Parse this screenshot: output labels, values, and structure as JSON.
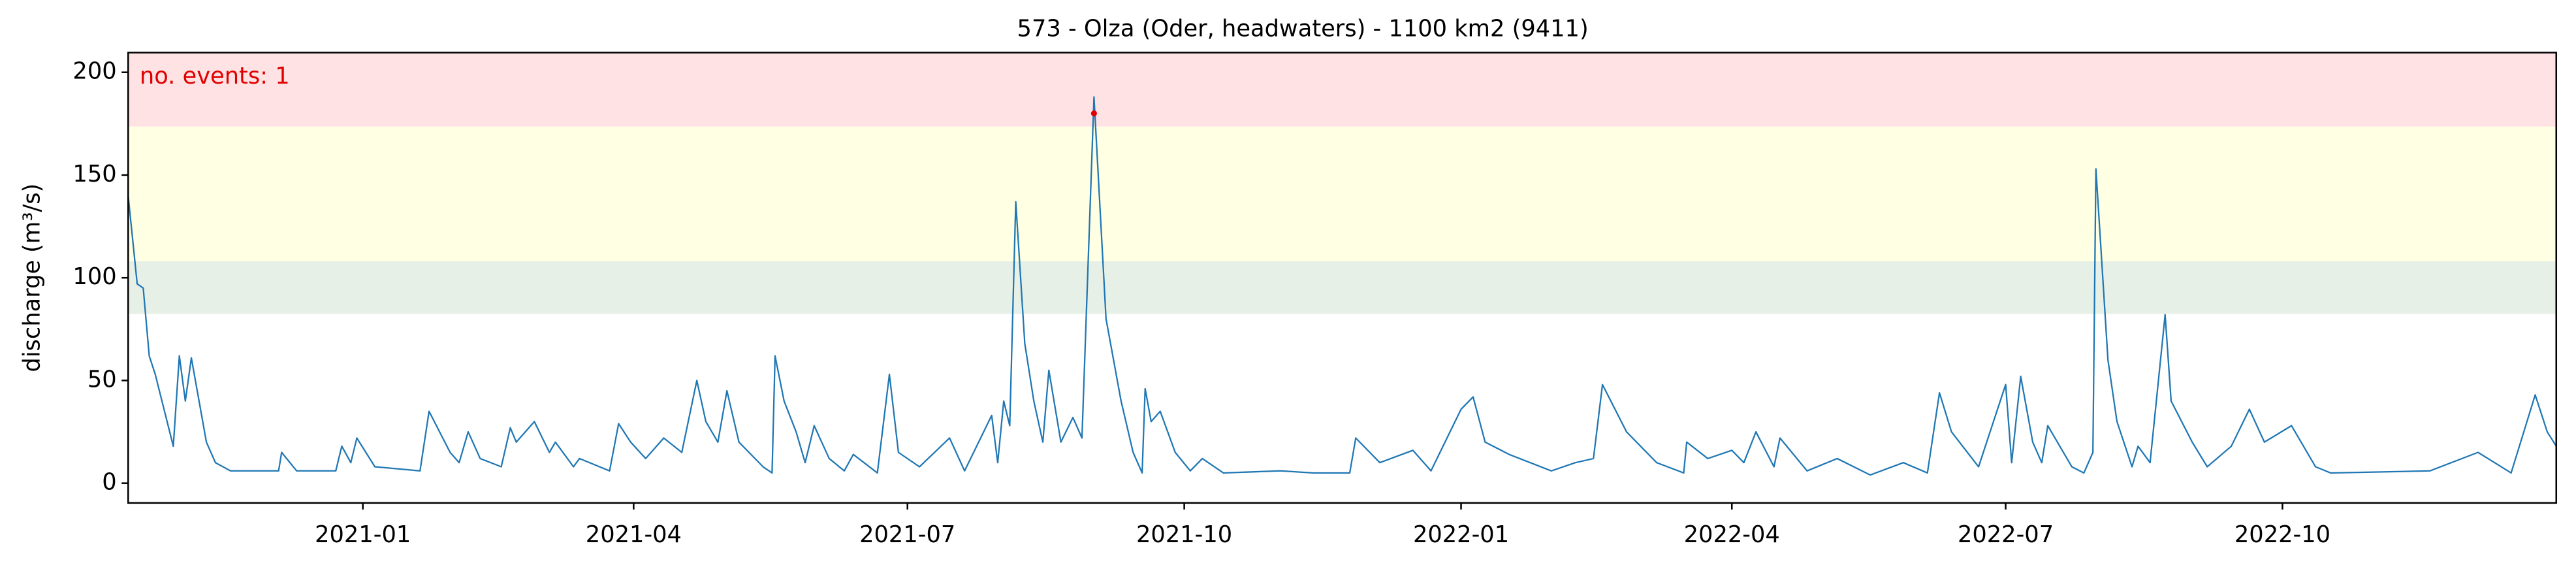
{
  "chart_data": {
    "type": "line",
    "title": "573 - Olza (Oder, headwaters) - 1100 km2 (9411)",
    "ylabel": "discharge (m³/s)",
    "annotation": "no. events: 1",
    "annotation_color": "#e00000",
    "xlim": [
      -78,
      729
    ],
    "xticks": [
      {
        "value": 0,
        "label": "2021-01"
      },
      {
        "value": 90,
        "label": "2021-04"
      },
      {
        "value": 181,
        "label": "2021-07"
      },
      {
        "value": 273,
        "label": "2021-10"
      },
      {
        "value": 365,
        "label": "2022-01"
      },
      {
        "value": 455,
        "label": "2022-04"
      },
      {
        "value": 546,
        "label": "2022-07"
      },
      {
        "value": 638,
        "label": "2022-10"
      }
    ],
    "ylim": [
      -9.6,
      209.6
    ],
    "yticks": [
      0,
      50,
      100,
      150,
      200
    ],
    "bands": [
      {
        "range": [
          82.4,
          108
        ],
        "color": "#e6f0e6"
      },
      {
        "range": [
          108,
          173.6
        ],
        "color": "#ffffe4"
      },
      {
        "range": [
          173.6,
          209.6
        ],
        "color": "#ffe2e4"
      }
    ],
    "series": [
      {
        "color": "#1f77b4",
        "x": [
          -78,
          -75,
          -73,
          -71,
          -69,
          -63,
          -61,
          -59,
          -57,
          -52,
          -49,
          -44,
          -28,
          -27,
          -22,
          -9,
          -7,
          -4,
          -2,
          4,
          19,
          22,
          29,
          32,
          35,
          39,
          46,
          49,
          51,
          57,
          62,
          64,
          70,
          72,
          82,
          85,
          89,
          94,
          100,
          106,
          111,
          114,
          118,
          121,
          125,
          133,
          136,
          137,
          140,
          144,
          147,
          150,
          155,
          160,
          163,
          171,
          175,
          178,
          185,
          195,
          200,
          209,
          211,
          213,
          215,
          217,
          220,
          223,
          226,
          228,
          232,
          236,
          239,
          243,
          247,
          252,
          256,
          259,
          260,
          262,
          265,
          270,
          275,
          279,
          286,
          305,
          316,
          328,
          330,
          338,
          349,
          355,
          358,
          365,
          369,
          373,
          381,
          395,
          403,
          409,
          412,
          420,
          430,
          439,
          440,
          447,
          455,
          459,
          463,
          469,
          471,
          480,
          490,
          501,
          512,
          520,
          524,
          528,
          537,
          546,
          548,
          551,
          555,
          558,
          560,
          568,
          572,
          575,
          576,
          580,
          583,
          588,
          590,
          594,
          599,
          601,
          608,
          613,
          621,
          627,
          632,
          641,
          649,
          654,
          687,
          703,
          714,
          722,
          726,
          729
        ],
        "values": [
          140,
          97,
          95,
          62,
          53,
          18,
          62,
          40,
          61,
          20,
          10,
          6,
          6,
          15,
          6,
          6,
          18,
          10,
          22,
          8,
          6,
          35,
          15,
          10,
          25,
          12,
          8,
          27,
          20,
          30,
          15,
          20,
          8,
          12,
          6,
          29,
          20,
          12,
          22,
          15,
          50,
          30,
          20,
          45,
          20,
          8,
          5,
          62,
          40,
          25,
          10,
          28,
          12,
          6,
          14,
          5,
          53,
          15,
          8,
          22,
          6,
          33,
          10,
          40,
          28,
          137,
          68,
          40,
          20,
          55,
          20,
          32,
          22,
          188,
          80,
          40,
          15,
          5,
          46,
          30,
          35,
          15,
          6,
          12,
          5,
          6,
          5,
          5,
          22,
          10,
          16,
          6,
          15,
          36,
          42,
          20,
          14,
          6,
          10,
          12,
          48,
          25,
          10,
          5,
          20,
          12,
          16,
          10,
          25,
          8,
          22,
          6,
          12,
          4,
          10,
          5,
          44,
          25,
          8,
          48,
          10,
          52,
          20,
          10,
          28,
          8,
          5,
          15,
          153,
          60,
          30,
          8,
          18,
          10,
          82,
          40,
          20,
          8,
          18,
          36,
          20,
          28,
          8,
          5,
          6,
          15,
          5,
          43,
          25,
          18
        ]
      }
    ],
    "events": {
      "color": "#e00000",
      "x": [
        243
      ],
      "values": [
        180
      ]
    }
  }
}
